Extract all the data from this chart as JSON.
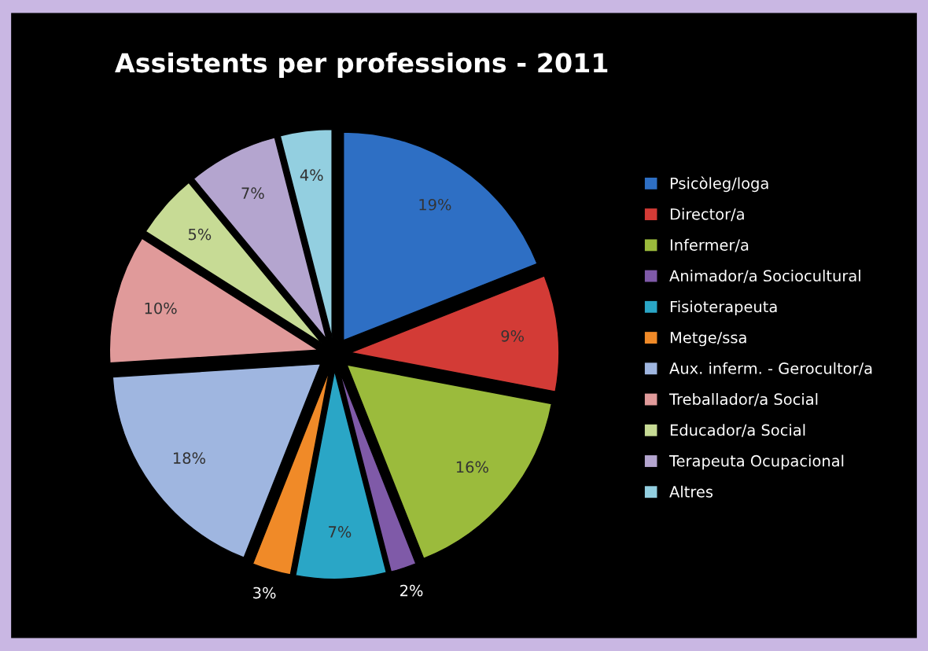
{
  "chart_data": {
    "type": "pie",
    "title": "Assistents per professions - 2011",
    "categories": [
      "Psicòleg/loga",
      "Director/a",
      "Infermer/a",
      "Animador/a Sociocultural",
      "Fisioterapeuta",
      "Metge/ssa",
      "Aux. inferm. - Gerocultor/a",
      "Treballador/a Social",
      "Educador/a Social",
      "Terapeuta Ocupacional",
      "Altres"
    ],
    "values": [
      19,
      9,
      16,
      2,
      7,
      3,
      18,
      10,
      5,
      7,
      4
    ],
    "value_labels": [
      "19%",
      "9%",
      "16%",
      "2%",
      "7%",
      "3%",
      "18%",
      "10%",
      "5%",
      "7%",
      "4%"
    ],
    "colors": [
      "#2e6fc4",
      "#d33b36",
      "#9bbb3c",
      "#7f5aa8",
      "#2aa6c6",
      "#f08a28",
      "#9fb6e0",
      "#e09a9a",
      "#c7db95",
      "#b4a5cf",
      "#93cfe0"
    ],
    "legend": "right"
  }
}
